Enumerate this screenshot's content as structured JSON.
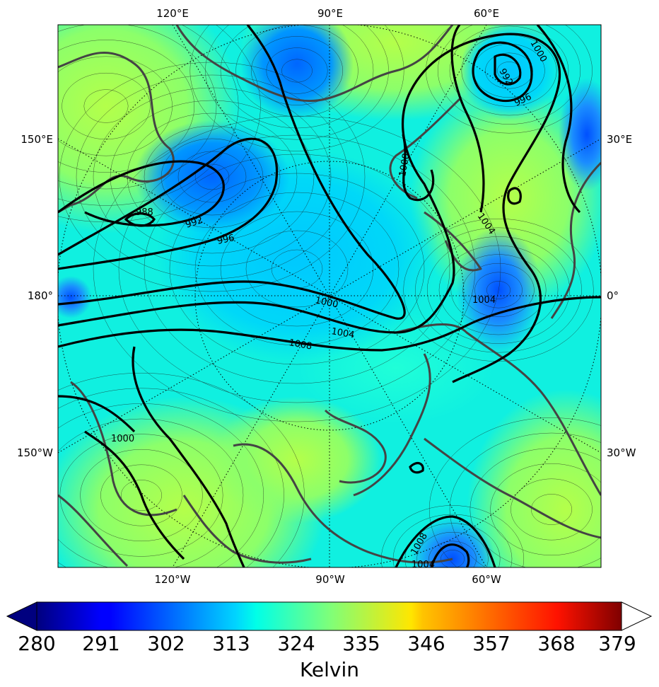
{
  "map": {
    "projection": "north-polar stereographic",
    "field_colormap": "jet",
    "contour_line_color": "#000000",
    "coastline_color": "#444444",
    "labels_top": [
      "120°E",
      "90°E",
      "60°E"
    ],
    "labels_bottom": [
      "120°W",
      "90°W",
      "60°W"
    ],
    "labels_left": [
      "150°E",
      "180°",
      "150°W"
    ],
    "labels_right": [
      "30°E",
      "0°",
      "30°W"
    ],
    "pressure_contours": [
      {
        "text": "1000"
      },
      {
        "text": "992"
      },
      {
        "text": "996"
      },
      {
        "text": "1008"
      },
      {
        "text": "1004"
      },
      {
        "text": "988"
      },
      {
        "text": "992"
      },
      {
        "text": "996"
      },
      {
        "text": "1000"
      },
      {
        "text": "1004"
      },
      {
        "text": "1008"
      },
      {
        "text": "1004"
      },
      {
        "text": "1000"
      },
      {
        "text": "1008"
      },
      {
        "text": "1004"
      }
    ]
  },
  "colorbar": {
    "ticks": [
      "280",
      "291",
      "302",
      "313",
      "324",
      "335",
      "346",
      "357",
      "368",
      "379"
    ],
    "units_label": "Kelvin",
    "colormap": "jet",
    "extend": "both",
    "min": 280,
    "max": 379
  }
}
